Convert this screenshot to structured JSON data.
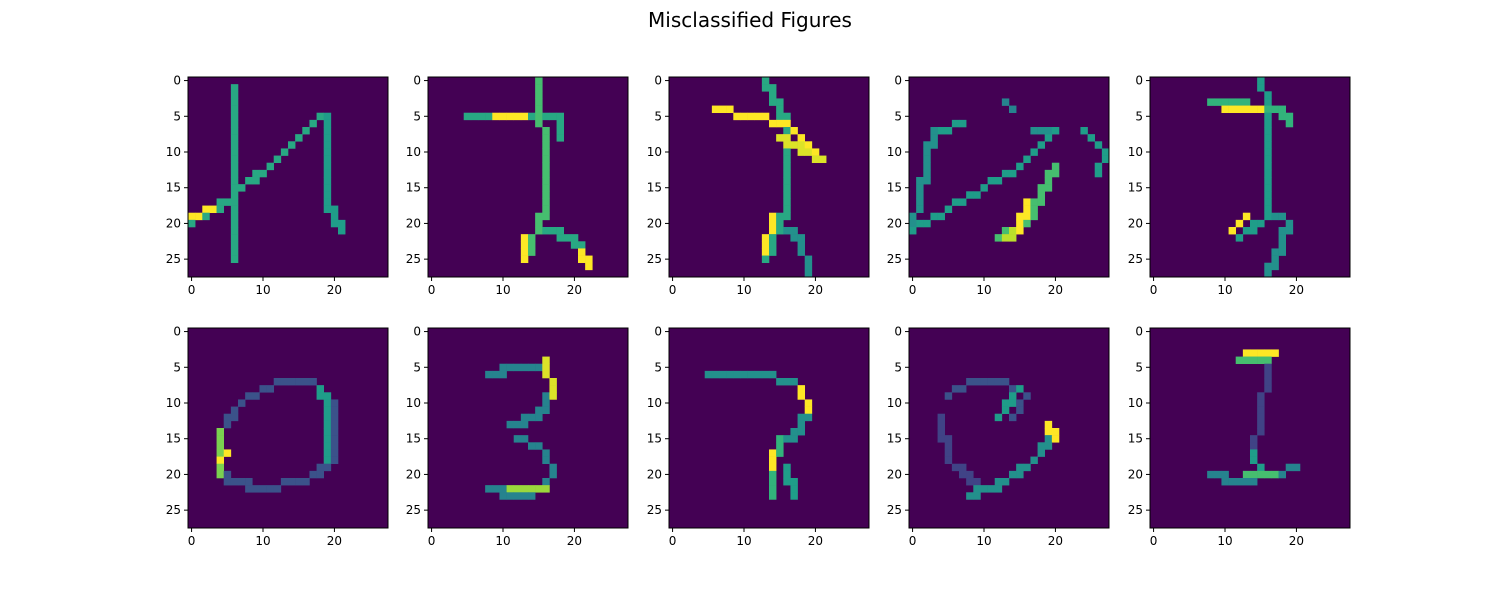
{
  "title": "Misclassified Figures",
  "colormap": {
    "name": "viridis",
    "low": "#440154",
    "high": "#fde725"
  },
  "chart_data": {
    "type": "heatmap",
    "grid": {
      "rows": 2,
      "cols": 5
    },
    "image_size": [
      28,
      28
    ],
    "x_ticks": [
      "0",
      "10",
      "20"
    ],
    "y_ticks": [
      "0",
      "5",
      "10",
      "15",
      "20",
      "25"
    ],
    "xlim": [
      -0.5,
      27.5
    ],
    "ylim": [
      27.5,
      -0.5
    ],
    "value_range": [
      0,
      1
    ],
    "panels": [
      {
        "row": 1,
        "col": 1,
        "strokes": [
          {
            "points": [
              [
                6,
                1
              ],
              [
                6,
                25
              ]
            ],
            "v": 0.6
          },
          {
            "points": [
              [
                0,
                20
              ],
              [
                6,
                16
              ],
              [
                12,
                11
              ],
              [
                18,
                5
              ]
            ],
            "v": 0.6
          },
          {
            "points": [
              [
                18,
                5
              ],
              [
                19,
                5
              ],
              [
                19,
                17
              ],
              [
                21,
                21
              ]
            ],
            "v": 0.55
          },
          {
            "points": [
              [
                0,
                19
              ],
              [
                3,
                18
              ]
            ],
            "v": 1.0
          }
        ]
      },
      {
        "row": 1,
        "col": 2,
        "strokes": [
          {
            "points": [
              [
                5,
                5
              ],
              [
                18,
                5
              ],
              [
                18,
                8
              ]
            ],
            "v": 0.6
          },
          {
            "points": [
              [
                9,
                5
              ],
              [
                13,
                5
              ]
            ],
            "v": 1.0
          },
          {
            "points": [
              [
                15,
                0
              ],
              [
                15,
                5
              ],
              [
                16,
                8
              ],
              [
                16,
                18
              ],
              [
                13,
                25
              ]
            ],
            "v": 0.7
          },
          {
            "points": [
              [
                13,
                22
              ],
              [
                13,
                25
              ]
            ],
            "v": 1.0
          },
          {
            "points": [
              [
                16,
                21
              ],
              [
                20,
                22
              ],
              [
                22,
                26
              ]
            ],
            "v": 0.6
          },
          {
            "points": [
              [
                21,
                24
              ],
              [
                22,
                26
              ]
            ],
            "v": 1.0
          }
        ]
      },
      {
        "row": 1,
        "col": 3,
        "strokes": [
          {
            "points": [
              [
                6,
                4
              ],
              [
                16,
                6
              ],
              [
                20,
                10
              ]
            ],
            "v": 1.0
          },
          {
            "points": [
              [
                15,
                8
              ],
              [
                21,
                11
              ]
            ],
            "v": 0.95
          },
          {
            "points": [
              [
                13,
                0
              ],
              [
                15,
                4
              ],
              [
                16,
                6
              ],
              [
                16,
                18
              ],
              [
                13,
                25
              ]
            ],
            "v": 0.6
          },
          {
            "points": [
              [
                14,
                19
              ],
              [
                13,
                24
              ]
            ],
            "v": 1.0
          },
          {
            "points": [
              [
                16,
                21
              ],
              [
                18,
                22
              ],
              [
                19,
                27
              ]
            ],
            "v": 0.5
          }
        ]
      },
      {
        "row": 1,
        "col": 4,
        "strokes": [
          {
            "points": [
              [
                0,
                21
              ],
              [
                5,
                18
              ],
              [
                10,
                15
              ],
              [
                15,
                12
              ],
              [
                20,
                7
              ]
            ],
            "v": 0.55
          },
          {
            "points": [
              [
                3,
                7
              ],
              [
                1,
                16
              ],
              [
                0,
                21
              ]
            ],
            "v": 0.5
          },
          {
            "points": [
              [
                4,
                7
              ],
              [
                7,
                6
              ]
            ],
            "v": 0.55
          },
          {
            "points": [
              [
                13,
                3
              ],
              [
                14,
                4
              ]
            ],
            "v": 0.45
          },
          {
            "points": [
              [
                20,
                7
              ],
              [
                17,
                7
              ]
            ],
            "v": 0.5
          },
          {
            "points": [
              [
                24,
                7
              ],
              [
                27,
                10
              ],
              [
                26,
                13
              ]
            ],
            "v": 0.55
          },
          {
            "points": [
              [
                12,
                22
              ],
              [
                16,
                20
              ],
              [
                20,
                12
              ]
            ],
            "v": 0.7
          },
          {
            "points": [
              [
                16,
                17
              ],
              [
                15,
                21
              ]
            ],
            "v": 1.0
          },
          {
            "points": [
              [
                13,
                22
              ],
              [
                15,
                21
              ]
            ],
            "v": 0.9
          }
        ]
      },
      {
        "row": 1,
        "col": 5,
        "strokes": [
          {
            "points": [
              [
                8,
                3
              ],
              [
                18,
                4
              ],
              [
                19,
                6
              ]
            ],
            "v": 0.65
          },
          {
            "points": [
              [
                10,
                4
              ],
              [
                15,
                4
              ]
            ],
            "v": 1.0
          },
          {
            "points": [
              [
                15,
                0
              ],
              [
                16,
                3
              ],
              [
                16,
                19
              ],
              [
                12,
                22
              ]
            ],
            "v": 0.55
          },
          {
            "points": [
              [
                11,
                21
              ],
              [
                13,
                19
              ]
            ],
            "v": 1.0
          },
          {
            "points": [
              [
                16,
                18
              ],
              [
                19,
                20
              ],
              [
                17,
                25
              ],
              [
                16,
                27
              ]
            ],
            "v": 0.5
          }
        ]
      },
      {
        "row": 2,
        "col": 1,
        "strokes": [
          {
            "points": [
              [
                12,
                7
              ],
              [
                17,
                7
              ],
              [
                20,
                10
              ],
              [
                20,
                18
              ],
              [
                16,
                21
              ],
              [
                9,
                22
              ],
              [
                4,
                20
              ],
              [
                4,
                14
              ],
              [
                7,
                10
              ],
              [
                12,
                7
              ]
            ],
            "v": 0.25
          },
          {
            "points": [
              [
                4,
                14
              ],
              [
                4,
                20
              ]
            ],
            "v": 0.8
          },
          {
            "points": [
              [
                4,
                18
              ],
              [
                5,
                17
              ]
            ],
            "v": 1.0
          },
          {
            "points": [
              [
                18,
                8
              ],
              [
                19,
                10
              ],
              [
                19,
                18
              ]
            ],
            "v": 0.55
          }
        ]
      },
      {
        "row": 2,
        "col": 2,
        "strokes": [
          {
            "points": [
              [
                8,
                6
              ],
              [
                12,
                5
              ],
              [
                16,
                5
              ],
              [
                17,
                8
              ],
              [
                15,
                12
              ],
              [
                11,
                13
              ]
            ],
            "v": 0.45
          },
          {
            "points": [
              [
                16,
                4
              ],
              [
                17,
                9
              ]
            ],
            "v": 0.95
          },
          {
            "points": [
              [
                12,
                15
              ],
              [
                15,
                16
              ],
              [
                17,
                19
              ],
              [
                16,
                22
              ],
              [
                12,
                23
              ],
              [
                8,
                22
              ]
            ],
            "v": 0.45
          },
          {
            "points": [
              [
                11,
                22
              ],
              [
                16,
                22
              ]
            ],
            "v": 0.85
          }
        ]
      },
      {
        "row": 2,
        "col": 3,
        "strokes": [
          {
            "points": [
              [
                5,
                6
              ],
              [
                12,
                6
              ],
              [
                17,
                7
              ],
              [
                19,
                10
              ],
              [
                18,
                14
              ],
              [
                16,
                15
              ]
            ],
            "v": 0.5
          },
          {
            "points": [
              [
                18,
                8
              ],
              [
                19,
                11
              ]
            ],
            "v": 1.0
          },
          {
            "points": [
              [
                15,
                15
              ],
              [
                14,
                19
              ],
              [
                14,
                23
              ]
            ],
            "v": 0.65
          },
          {
            "points": [
              [
                14,
                17
              ],
              [
                14,
                19
              ]
            ],
            "v": 1.0
          },
          {
            "points": [
              [
                16,
                19
              ],
              [
                17,
                23
              ]
            ],
            "v": 0.55
          }
        ]
      },
      {
        "row": 2,
        "col": 4,
        "strokes": [
          {
            "points": [
              [
                5,
                9
              ],
              [
                8,
                7
              ],
              [
                13,
                7
              ],
              [
                16,
                9
              ],
              [
                14,
                12
              ]
            ],
            "v": 0.25
          },
          {
            "points": [
              [
                12,
                12
              ],
              [
                15,
                8
              ]
            ],
            "v": 0.55
          },
          {
            "points": [
              [
                4,
                12
              ],
              [
                5,
                18
              ],
              [
                10,
                22
              ]
            ],
            "v": 0.2
          },
          {
            "points": [
              [
                8,
                23
              ],
              [
                13,
                21
              ],
              [
                17,
                18
              ],
              [
                20,
                14
              ]
            ],
            "v": 0.5
          },
          {
            "points": [
              [
                19,
                13
              ],
              [
                20,
                15
              ]
            ],
            "v": 1.0
          }
        ]
      },
      {
        "row": 2,
        "col": 5,
        "strokes": [
          {
            "points": [
              [
                13,
                3
              ],
              [
                17,
                3
              ]
            ],
            "v": 1.0
          },
          {
            "points": [
              [
                12,
                4
              ],
              [
                16,
                4
              ]
            ],
            "v": 0.7
          },
          {
            "points": [
              [
                16,
                5
              ],
              [
                15,
                12
              ],
              [
                14,
                17
              ]
            ],
            "v": 0.2
          },
          {
            "points": [
              [
                8,
                20
              ],
              [
                12,
                21
              ],
              [
                17,
                20
              ],
              [
                20,
                19
              ]
            ],
            "v": 0.45
          },
          {
            "points": [
              [
                14,
                17
              ],
              [
                15,
                20
              ]
            ],
            "v": 0.55
          },
          {
            "points": [
              [
                13,
                20
              ],
              [
                17,
                20
              ]
            ],
            "v": 0.7
          }
        ]
      }
    ]
  }
}
